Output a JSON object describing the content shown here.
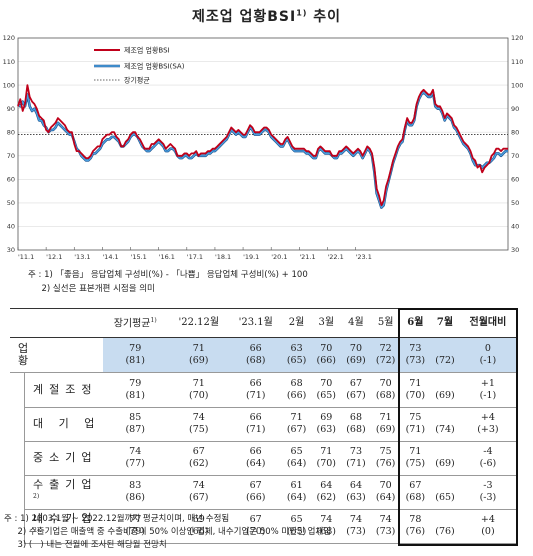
{
  "page": {
    "title": "제조업 업황BSI",
    "title_sup": "1)",
    "title_suffix": "추이"
  },
  "chart_data": {
    "type": "line",
    "ylim": [
      30,
      120
    ],
    "yticks": [
      30,
      40,
      50,
      60,
      70,
      80,
      90,
      100,
      110,
      120
    ],
    "xticks": [
      "'11.1",
      "'12.1",
      "'13.1",
      "'14.1",
      "'15.1",
      "'16.1",
      "'17.1",
      "'18.1",
      "'19.1",
      "'20.1",
      "'21.1",
      "'22.1",
      "'23.1"
    ],
    "xstart": "2011-01",
    "xend": "2023-07",
    "grid": true,
    "legend": "top-left",
    "series": [
      {
        "name": "제조업 업황BSI",
        "color": "#c0001a",
        "values": [
          91,
          94,
          89,
          92,
          100,
          95,
          93,
          92,
          90,
          87,
          86,
          85,
          81,
          80,
          82,
          83,
          84,
          86,
          85,
          84,
          83,
          81,
          80,
          80,
          75,
          72,
          72,
          71,
          70,
          69,
          69,
          70,
          72,
          73,
          74,
          74,
          77,
          78,
          79,
          79,
          80,
          80,
          78,
          77,
          74,
          74,
          76,
          77,
          79,
          80,
          80,
          78,
          77,
          75,
          73,
          73,
          73,
          75,
          75,
          76,
          77,
          76,
          75,
          73,
          74,
          75,
          74,
          73,
          70,
          70,
          70,
          71,
          71,
          70,
          71,
          71,
          72,
          70,
          71,
          71,
          71,
          72,
          72,
          73,
          73,
          74,
          75,
          76,
          77,
          78,
          80,
          82,
          81,
          80,
          81,
          80,
          79,
          79,
          81,
          83,
          82,
          80,
          80,
          80,
          81,
          82,
          82,
          81,
          79,
          78,
          77,
          76,
          75,
          75,
          77,
          78,
          76,
          74,
          73,
          73,
          73,
          73,
          73,
          72,
          72,
          71,
          70,
          70,
          73,
          74,
          73,
          72,
          72,
          72,
          70,
          70,
          70,
          72,
          72,
          73,
          74,
          73,
          72,
          71,
          72,
          73,
          72,
          70,
          72,
          74,
          73,
          71,
          65,
          56,
          53,
          49,
          51,
          57,
          60,
          64,
          68,
          71,
          74,
          76,
          77,
          82,
          86,
          84,
          84,
          86,
          92,
          95,
          97,
          98,
          97,
          96,
          96,
          98,
          92,
          91,
          91,
          89,
          86,
          88,
          87,
          86,
          83,
          82,
          80,
          78,
          76,
          75,
          74,
          72,
          69,
          68,
          65,
          66,
          63,
          65,
          66,
          67,
          70,
          71,
          73,
          73,
          72,
          73,
          73,
          73
        ]
      },
      {
        "name": "제조업 업황BSI(SA)",
        "color": "#4a9fe0",
        "values": [
          92,
          91,
          93,
          91,
          96,
          91,
          89,
          90,
          88,
          85,
          85,
          83,
          82,
          80,
          81,
          81,
          82,
          84,
          83,
          82,
          81,
          80,
          79,
          79,
          76,
          73,
          72,
          70,
          69,
          68,
          68,
          69,
          71,
          71,
          72,
          73,
          75,
          76,
          77,
          77,
          78,
          78,
          77,
          76,
          74,
          74,
          75,
          76,
          78,
          79,
          79,
          78,
          76,
          74,
          73,
          72,
          72,
          73,
          74,
          75,
          76,
          75,
          74,
          72,
          72,
          73,
          73,
          72,
          70,
          69,
          69,
          70,
          70,
          69,
          69,
          70,
          71,
          70,
          70,
          70,
          70,
          71,
          71,
          72,
          72,
          73,
          74,
          75,
          76,
          77,
          79,
          81,
          80,
          79,
          80,
          79,
          78,
          78,
          80,
          82,
          81,
          79,
          79,
          79,
          80,
          81,
          81,
          80,
          78,
          77,
          76,
          75,
          74,
          74,
          76,
          77,
          75,
          73,
          72,
          72,
          72,
          72,
          72,
          71,
          71,
          70,
          69,
          69,
          72,
          73,
          72,
          71,
          71,
          71,
          70,
          69,
          69,
          71,
          71,
          72,
          73,
          72,
          71,
          70,
          71,
          72,
          71,
          69,
          71,
          73,
          72,
          70,
          63,
          54,
          51,
          48,
          49,
          55,
          59,
          63,
          67,
          70,
          73,
          75,
          76,
          81,
          85,
          83,
          83,
          85,
          91,
          94,
          96,
          97,
          96,
          95,
          95,
          97,
          91,
          90,
          90,
          88,
          85,
          87,
          86,
          85,
          82,
          81,
          79,
          77,
          75,
          74,
          73,
          71,
          68,
          66,
          66,
          66,
          65,
          66,
          67,
          67,
          68,
          69,
          71,
          71,
          70,
          71,
          72,
          72
        ]
      },
      {
        "name": "장기평균",
        "color": "#333333",
        "values": [
          79
        ]
      }
    ]
  },
  "notes": {
    "line1": "주 : 1) 「좋음」 응답업체 구성비(%) - 「나쁨」 응답업체 구성비(%) + 100",
    "line2": "     2) 실선은 표본개편 시점을 의미"
  },
  "table": {
    "headers": [
      "장기평균",
      "'22.12월",
      "'23.1월",
      "2월",
      "3월",
      "4월",
      "5월",
      "6월",
      "7월",
      "전월대비"
    ],
    "header_note": "1)",
    "rows": [
      {
        "label": "업 황",
        "sub": false,
        "sup": "",
        "vals": [
          "79",
          "71",
          "66",
          "63",
          "70",
          "70",
          "72",
          "73",
          "",
          "0"
        ],
        "prev": [
          "(81)",
          "(69)",
          "(68)",
          "(65)",
          "(66)",
          "(69)",
          "(72)",
          "(73)",
          "(72)",
          "(-1)"
        ],
        "highlight": true
      },
      {
        "label": "계절조정",
        "sub": true,
        "sup": "",
        "vals": [
          "79",
          "71",
          "66",
          "68",
          "70",
          "67",
          "70",
          "71",
          "",
          "+1"
        ],
        "prev": [
          "(81)",
          "(70)",
          "(71)",
          "(66)",
          "(65)",
          "(67)",
          "(68)",
          "(70)",
          "(69)",
          "(-1)"
        ],
        "highlight": false
      },
      {
        "label": "대 기 업",
        "sub": true,
        "sup": "",
        "vals": [
          "85",
          "74",
          "66",
          "71",
          "69",
          "68",
          "71",
          "75",
          "",
          "+4"
        ],
        "prev": [
          "(87)",
          "(75)",
          "(71)",
          "(67)",
          "(63)",
          "(68)",
          "(69)",
          "(71)",
          "(74)",
          "(+3)"
        ],
        "highlight": false
      },
      {
        "label": "중소기업",
        "sub": true,
        "sup": "",
        "vals": [
          "74",
          "67",
          "66",
          "65",
          "71",
          "73",
          "75",
          "71",
          "",
          "-4"
        ],
        "prev": [
          "(77)",
          "(62)",
          "(64)",
          "(64)",
          "(70)",
          "(71)",
          "(76)",
          "(75)",
          "(69)",
          "(-6)"
        ],
        "highlight": false
      },
      {
        "label": "수출기업",
        "sub": true,
        "sup": "2)",
        "vals": [
          "83",
          "74",
          "67",
          "61",
          "64",
          "64",
          "70",
          "67",
          "",
          "-3"
        ],
        "prev": [
          "(86)",
          "(67)",
          "(66)",
          "(64)",
          "(62)",
          "(63)",
          "(64)",
          "(68)",
          "(65)",
          "(-3)"
        ],
        "highlight": false
      },
      {
        "label": "내수기업",
        "sub": true,
        "sup": "2)",
        "vals": [
          "77",
          "69",
          "67",
          "65",
          "74",
          "74",
          "74",
          "78",
          "",
          "+4"
        ],
        "prev": [
          "(79)",
          "(66)",
          "(70)",
          "(65)",
          "(68)",
          "(73)",
          "(73)",
          "(76)",
          "(76)",
          "(0)"
        ],
        "highlight": false
      }
    ]
  },
  "footnotes": {
    "line1": "주 : 1) 2003.1월 ~ 2022.12월까지 평균치이며, 매년 수정됨",
    "line2": "     2) 수출기업은 매출액 중 수출비중이 50% 이상인 업체, 내수기업은 50% 미만인 업체임",
    "line3": "     3) (   ) 내는 전월에 조사된 해당월 전망치"
  }
}
